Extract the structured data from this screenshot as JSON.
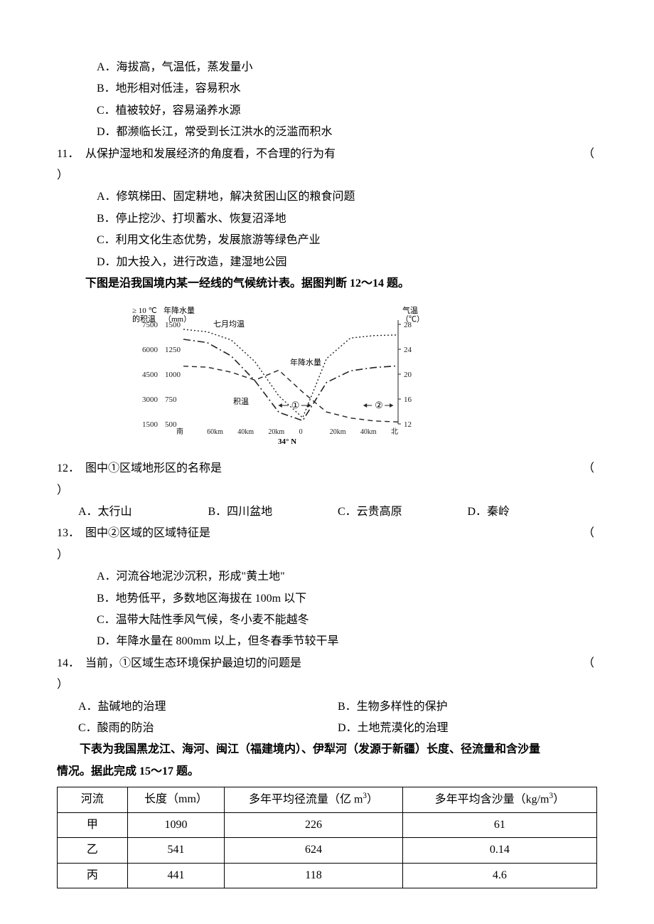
{
  "q10_options": {
    "A": "A．海拔高，气温低，蒸发量小",
    "B": "B．地形相对低洼，容易积水",
    "C": "C．植被较好，容易涵养水源",
    "D": "D．都濒临长江，常受到长江洪水的泛滥而积水"
  },
  "q11": {
    "num": "11．",
    "stem": "从保护湿地和发展经济的角度看，不合理的行为有",
    "paren_open": "（",
    "paren_close": "）",
    "options": {
      "A": "A．修筑梯田、固定耕地，解决贫困山区的粮食问题",
      "B": "B．停止挖沙、打坝蓄水、恢复沼泽地",
      "C": "C．利用文化生态优势，发展旅游等绿色产业",
      "D": "D．加大投入，进行改造，建湿地公园"
    }
  },
  "intro12": "下图是沿我国境内某一经线的气候统计表。据图判断 12～14 题。",
  "chart": {
    "left_axis_top1": "≥ 10 ℃",
    "left_axis_top2": "的积温",
    "left2_top1": "年降水量",
    "left2_top2": "（mm）",
    "right_top1": "气温",
    "right_top2": "（℃）",
    "y1_ticks": [
      "7500",
      "6000",
      "4500",
      "3000",
      "1500"
    ],
    "y2_ticks": [
      "1500",
      "1250",
      "1000",
      "750",
      "500"
    ],
    "y3_ticks": [
      "28",
      "24",
      "20",
      "16",
      "12"
    ],
    "x_ticks": [
      "南",
      "60km",
      "40km",
      "20km",
      "0",
      "20km",
      "40km",
      "北"
    ],
    "x_center": "34° N",
    "label_temp": "七月均温",
    "label_precip": "年降水量",
    "label_jiwen": "积温",
    "mark1": "①",
    "mark2": "②",
    "series": {
      "temp": [
        27.2,
        26.8,
        25.5,
        22.0,
        16.5,
        13.0,
        22.5,
        25.8,
        26.2,
        26.3
      ],
      "precip": [
        1080,
        1070,
        1020,
        940,
        1040,
        820,
        620,
        560,
        530,
        520
      ],
      "jiwen": [
        6600,
        6400,
        5600,
        4100,
        2200,
        1700,
        4000,
        4700,
        4900,
        5000
      ]
    },
    "colors": {
      "line": "#333333",
      "bg": "#ffffff"
    }
  },
  "q12": {
    "num": "12．",
    "stem": "图中①区域地形区的名称是",
    "paren_open": "（",
    "paren_close": "）",
    "options": {
      "A": "A．太行山",
      "B": "B．四川盆地",
      "C": "C．云贵高原",
      "D": "D．秦岭"
    }
  },
  "q13": {
    "num": "13．",
    "stem": "图中②区域的区域特征是",
    "paren_open": "（",
    "paren_close": "）",
    "options": {
      "A": "A．河流谷地泥沙沉积，形成\"黄土地\"",
      "B": "B．地势低平，多数地区海拔在 100m 以下",
      "C": "C．温带大陆性季风气候，冬小麦不能越冬",
      "D": "D．年降水量在 800mm 以上，但冬春季节较干旱"
    }
  },
  "q14": {
    "num": "14．",
    "stem": "当前，①区域生态环境保护最迫切的问题是",
    "paren_open": "（",
    "paren_close": "）",
    "options": {
      "A": "A．盐碱地的治理",
      "B": "B．生物多样性的保护",
      "C": "C．酸雨的防治",
      "D": "D．土地荒漠化的治理"
    }
  },
  "intro15_l1": "下表为我国黑龙江、海河、闽江（福建境内）、伊犁河（发源于新疆）长度、径流量和含沙量",
  "intro15_l2": "情况。据此完成 15～17 题。",
  "table": {
    "headers": [
      "河流",
      "长度（mm）",
      "多年平均径流量（亿 m³）",
      "多年平均含沙量（kg/m³）"
    ],
    "rows": [
      [
        "甲",
        "1090",
        "226",
        "61"
      ],
      [
        "乙",
        "541",
        "624",
        "0.14"
      ],
      [
        "丙",
        "441",
        "118",
        "4.6"
      ]
    ],
    "col_widths": [
      "13%",
      "18%",
      "33%",
      "36%"
    ]
  }
}
